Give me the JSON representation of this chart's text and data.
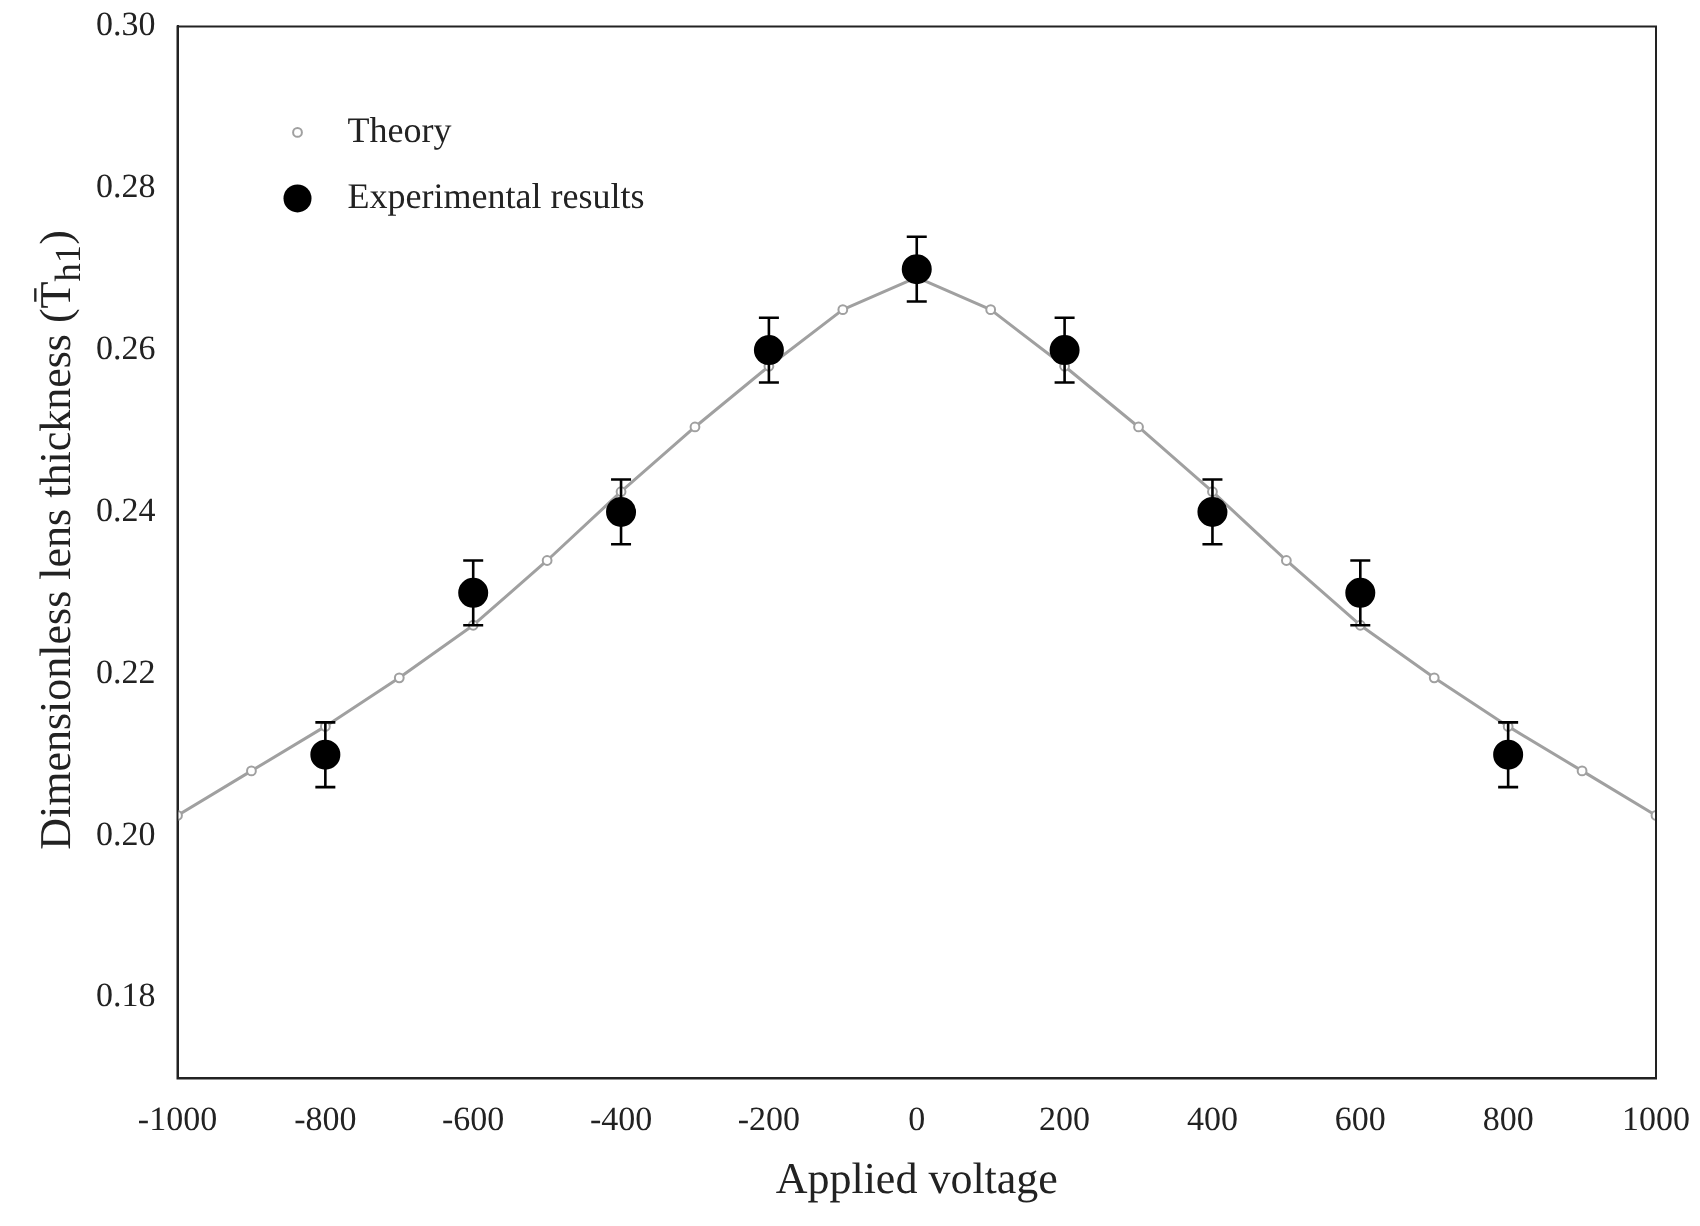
{
  "chart_data": {
    "type": "scatter",
    "xlabel": "Applied voltage",
    "ylabel": "Dimensionless lens thickness (T̄$_{h1}$)",
    "xlim": [
      -1000,
      1000
    ],
    "xticks": [
      -1000,
      -800,
      -600,
      -400,
      -200,
      0,
      200,
      400,
      600,
      800,
      1000
    ],
    "ylim": [
      0.17,
      0.3
    ],
    "yticks": [
      0.18,
      {
        "value": 0.2,
        "label": "0.20"
      },
      0.22,
      0.24,
      0.26,
      0.28,
      {
        "value": 0.3,
        "label": "0.30"
      }
    ],
    "legend": "top left",
    "grid": false,
    "series": [
      {
        "name": "Theory",
        "type": "line",
        "color": "#a0a0a0",
        "marker": "circle",
        "x": [
          -1000,
          -900,
          -800,
          -700,
          -600,
          -500,
          -400,
          -300,
          -200,
          -100,
          0,
          100,
          200,
          300,
          400,
          500,
          600,
          700,
          800,
          900,
          1000
        ],
        "values": [
          0.2025,
          0.208,
          0.2135,
          0.2195,
          0.226,
          0.234,
          0.2425,
          0.2505,
          0.258,
          0.265,
          0.269,
          0.265,
          0.258,
          0.2505,
          0.2425,
          0.234,
          0.226,
          0.2195,
          0.2135,
          0.208,
          0.2025
        ]
      },
      {
        "name": "Experimental results",
        "color": "#000000",
        "marker": "circle",
        "x": [
          -800,
          -600,
          -400,
          -200,
          0,
          200,
          400,
          600,
          800
        ],
        "values": [
          0.21,
          0.23,
          0.24,
          0.26,
          0.27,
          0.26,
          0.24,
          0.23,
          0.21
        ],
        "errors": [
          0.004,
          0.004,
          0.004,
          0.004,
          0.004,
          0.004,
          0.004,
          0.004,
          0.004
        ]
      }
    ]
  }
}
